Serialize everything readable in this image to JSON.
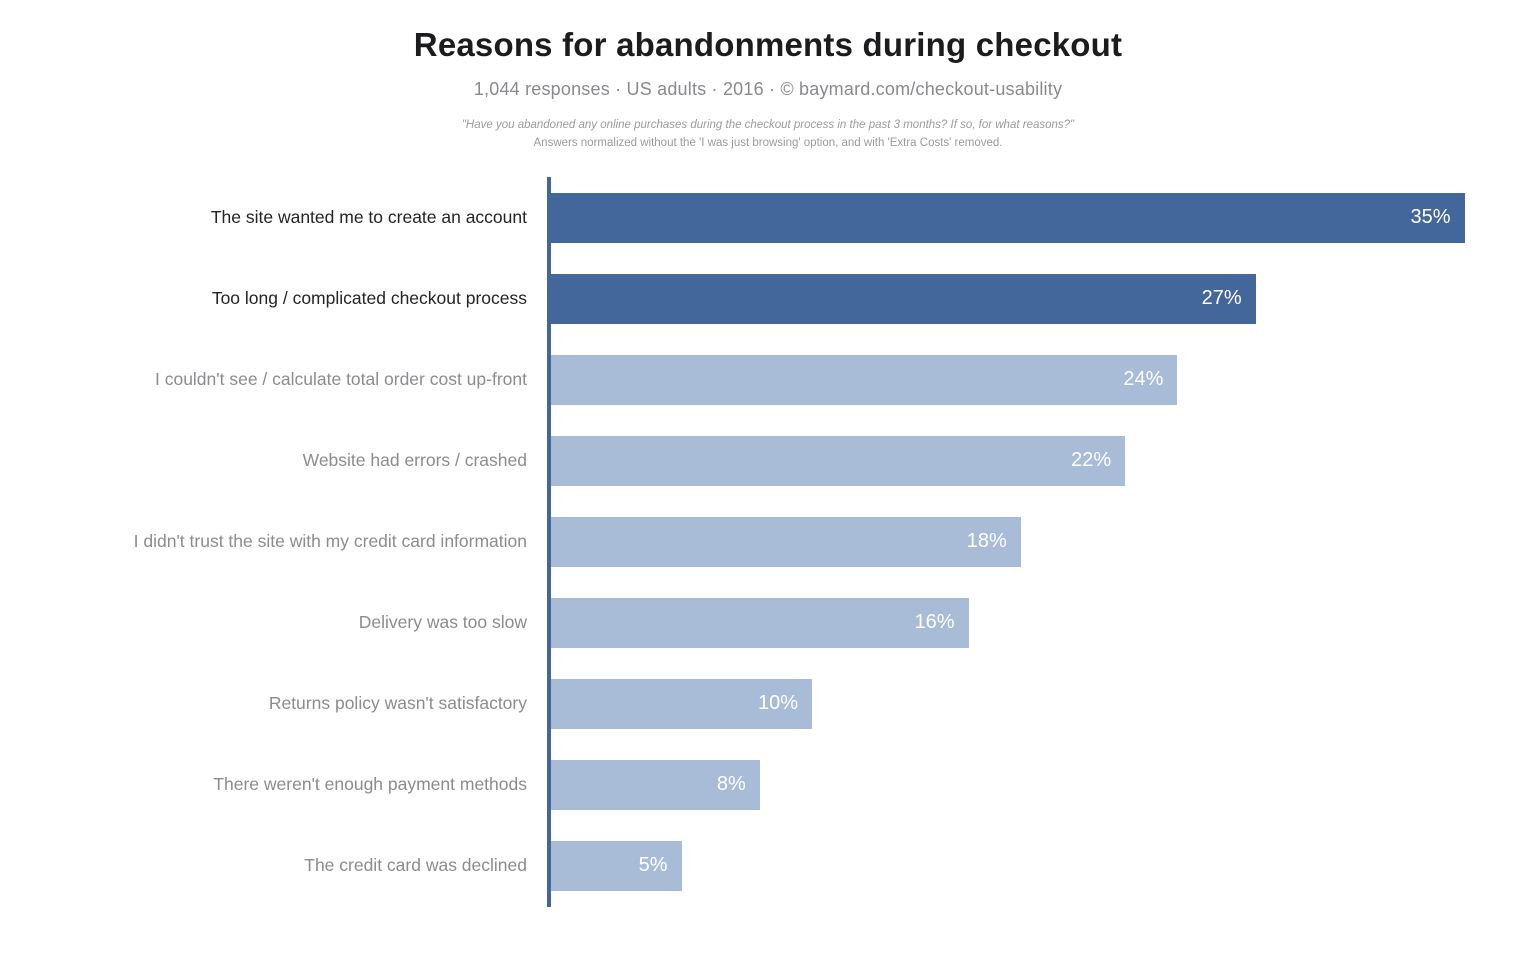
{
  "header": {
    "title": "Reasons for abandonments during checkout",
    "subtitle": "1,044 responses  ·  US adults  ·  2016  ·  ©  baymard.com/checkout-usability",
    "note_line1": "\"Have you abandoned any online purchases during the checkout process in the past 3 months? If so, for what reasons?\"",
    "note_line2": "Answers normalized without the 'I was just browsing' option, and with 'Extra Costs' removed."
  },
  "chart_data": {
    "type": "bar",
    "orientation": "horizontal",
    "title": "Reasons for abandonments during checkout",
    "categories": [
      "The site wanted me to create an account",
      "Too long / complicated checkout process",
      "I couldn't see / calculate total order cost up-front",
      "Website had errors / crashed",
      "I didn't trust the site with my credit card information",
      "Delivery was too slow",
      "Returns policy wasn't satisfactory",
      "There weren't enough payment methods",
      "The credit card was declined"
    ],
    "values": [
      35,
      27,
      24,
      22,
      18,
      16,
      10,
      8,
      5
    ],
    "value_suffix": "%",
    "xlim": [
      0,
      35
    ],
    "grid": false,
    "legend": "none",
    "emphasized": [
      true,
      true,
      false,
      false,
      false,
      false,
      false,
      false,
      false
    ],
    "colors": {
      "emphasis_bar": "#44679b",
      "normal_bar": "#a8bcd8",
      "axis_line": "#44679b",
      "value_text": "#ffffff",
      "emphasis_label": "#242426",
      "normal_label": "#8c8c90"
    }
  }
}
